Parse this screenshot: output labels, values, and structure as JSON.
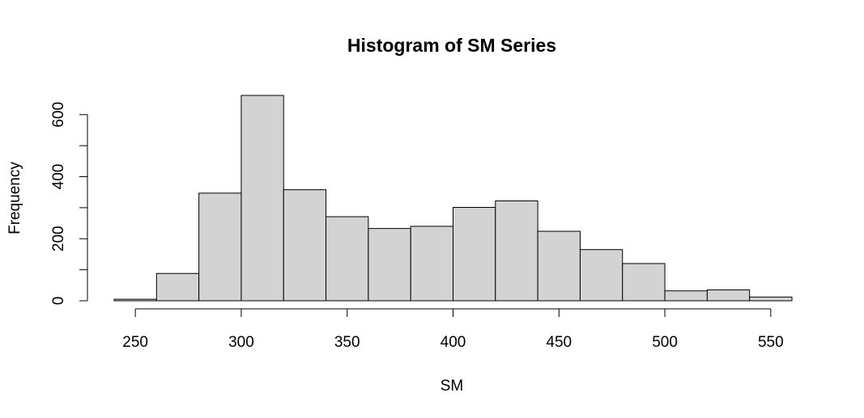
{
  "chart_data": {
    "type": "bar",
    "title": "Histogram of SM Series",
    "xlabel": "SM",
    "ylabel": "Frequency",
    "bin_width": 20,
    "bins": [
      {
        "start": 240,
        "end": 260,
        "count": 5
      },
      {
        "start": 260,
        "end": 280,
        "count": 88
      },
      {
        "start": 280,
        "end": 300,
        "count": 347
      },
      {
        "start": 300,
        "end": 320,
        "count": 662
      },
      {
        "start": 320,
        "end": 340,
        "count": 358
      },
      {
        "start": 340,
        "end": 360,
        "count": 271
      },
      {
        "start": 360,
        "end": 380,
        "count": 233
      },
      {
        "start": 380,
        "end": 400,
        "count": 240
      },
      {
        "start": 400,
        "end": 420,
        "count": 301
      },
      {
        "start": 420,
        "end": 440,
        "count": 322
      },
      {
        "start": 440,
        "end": 460,
        "count": 224
      },
      {
        "start": 460,
        "end": 480,
        "count": 165
      },
      {
        "start": 480,
        "end": 500,
        "count": 120
      },
      {
        "start": 500,
        "end": 520,
        "count": 32
      },
      {
        "start": 520,
        "end": 540,
        "count": 35
      },
      {
        "start": 540,
        "end": 560,
        "count": 12
      }
    ],
    "x_ticks": [
      "250",
      "300",
      "350",
      "400",
      "450",
      "500",
      "550"
    ],
    "y_ticks": [
      "0",
      "200",
      "400",
      "600"
    ],
    "y_minor_ticks": [
      100,
      300,
      500
    ],
    "xlim": [
      240,
      560
    ],
    "ylim": [
      0,
      662
    ],
    "grid": false,
    "colors": {
      "bar_fill": "#d3d3d3",
      "bar_stroke": "#000000"
    }
  }
}
